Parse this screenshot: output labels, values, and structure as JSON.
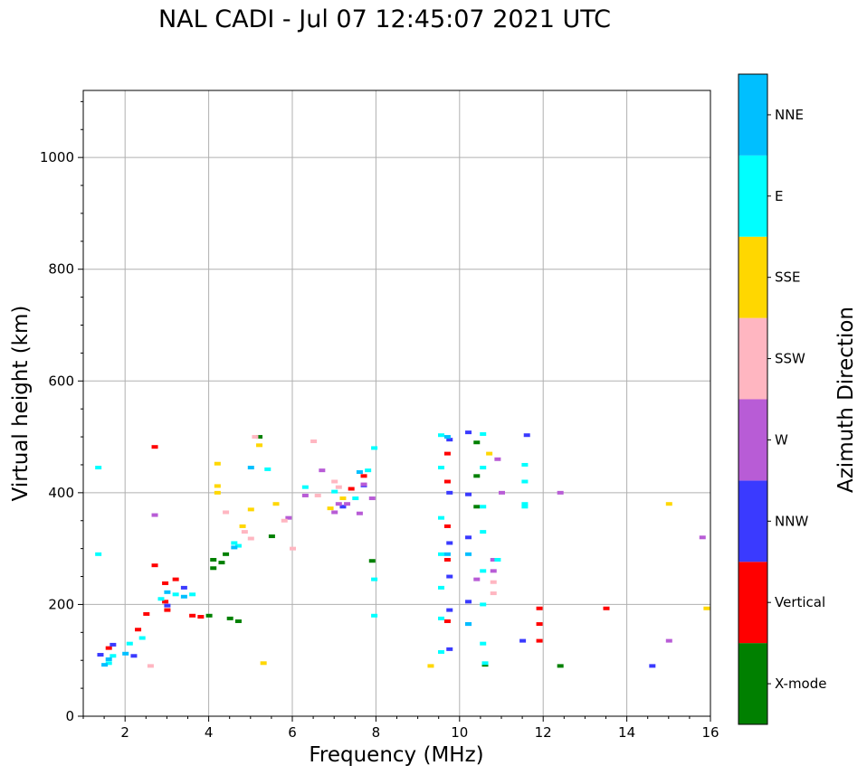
{
  "title": "NAL CADI - Jul 07 12:45:07 2021 UTC",
  "chart_data": {
    "type": "scatter",
    "title": "NAL CADI - Jul 07 12:45:07 2021 UTC",
    "xlabel": "Frequency (MHz)",
    "ylabel": "Virtual height (km)",
    "xlim": [
      1,
      16
    ],
    "ylim": [
      0,
      1120
    ],
    "xticks": [
      "2",
      "4",
      "6",
      "8",
      "10",
      "12",
      "14",
      "16"
    ],
    "yticks": [
      "0",
      "200",
      "400",
      "600",
      "800",
      "1000"
    ],
    "grid": true,
    "colorbar": {
      "label": "Azimuth Direction",
      "categories": [
        {
          "name": "X-mode",
          "color": "#008000"
        },
        {
          "name": "Vertical",
          "color": "#ff0000"
        },
        {
          "name": "NNW",
          "color": "#3a3aff"
        },
        {
          "name": "W",
          "color": "#b85cd6"
        },
        {
          "name": "SSW",
          "color": "#ffb6c1"
        },
        {
          "name": "SSE",
          "color": "#ffd700"
        },
        {
          "name": "E",
          "color": "#00ffff"
        },
        {
          "name": "NNE",
          "color": "#00bfff"
        }
      ]
    },
    "series": [
      {
        "name": "X-mode",
        "points": [
          [
            4.1,
            265
          ],
          [
            4.1,
            280
          ],
          [
            4.5,
            175
          ],
          [
            4.7,
            170
          ],
          [
            5.5,
            322
          ],
          [
            4.4,
            290
          ],
          [
            7.9,
            278
          ],
          [
            10.4,
            490
          ],
          [
            10.4,
            430
          ],
          [
            10.4,
            375
          ],
          [
            10.6,
            92
          ],
          [
            12.4,
            90
          ],
          [
            5.2,
            500
          ],
          [
            4.0,
            180
          ],
          [
            4.3,
            275
          ]
        ]
      },
      {
        "name": "Vertical",
        "points": [
          [
            1.6,
            122
          ],
          [
            2.95,
            238
          ],
          [
            2.95,
            205
          ],
          [
            3.0,
            190
          ],
          [
            3.2,
            245
          ],
          [
            3.6,
            180
          ],
          [
            3.8,
            178
          ],
          [
            2.7,
            270
          ],
          [
            2.7,
            482
          ],
          [
            2.5,
            183
          ],
          [
            2.3,
            155
          ],
          [
            7.4,
            407
          ],
          [
            7.7,
            430
          ],
          [
            11.9,
            193
          ],
          [
            11.9,
            135
          ],
          [
            11.9,
            165
          ],
          [
            13.5,
            193
          ],
          [
            9.7,
            470
          ],
          [
            9.7,
            420
          ],
          [
            9.7,
            340
          ],
          [
            9.7,
            280
          ],
          [
            9.7,
            170
          ]
        ]
      },
      {
        "name": "NNW",
        "points": [
          [
            1.4,
            110
          ],
          [
            1.7,
            128
          ],
          [
            2.2,
            108
          ],
          [
            3.0,
            198
          ],
          [
            3.4,
            230
          ],
          [
            7.7,
            413
          ],
          [
            7.2,
            375
          ],
          [
            9.75,
            495
          ],
          [
            9.75,
            400
          ],
          [
            9.75,
            310
          ],
          [
            9.75,
            250
          ],
          [
            9.75,
            190
          ],
          [
            9.75,
            120
          ],
          [
            10.2,
            320
          ],
          [
            10.2,
            205
          ],
          [
            10.2,
            165
          ],
          [
            11.5,
            135
          ],
          [
            14.6,
            90
          ],
          [
            11.6,
            503
          ],
          [
            10.2,
            508
          ],
          [
            10.2,
            397
          ]
        ]
      },
      {
        "name": "W",
        "points": [
          [
            6.3,
            395
          ],
          [
            6.7,
            440
          ],
          [
            7.0,
            365
          ],
          [
            7.1,
            380
          ],
          [
            7.3,
            380
          ],
          [
            7.6,
            363
          ],
          [
            7.9,
            390
          ],
          [
            7.7,
            415
          ],
          [
            5.9,
            355
          ],
          [
            12.4,
            400
          ],
          [
            15.0,
            135
          ],
          [
            15.8,
            320
          ],
          [
            2.7,
            360
          ],
          [
            10.8,
            280
          ],
          [
            10.8,
            260
          ],
          [
            10.4,
            245
          ],
          [
            10.9,
            460
          ],
          [
            11.0,
            400
          ]
        ]
      },
      {
        "name": "SSW",
        "points": [
          [
            6.5,
            492
          ],
          [
            6.6,
            395
          ],
          [
            7.0,
            420
          ],
          [
            7.1,
            410
          ],
          [
            5.0,
            318
          ],
          [
            4.85,
            330
          ],
          [
            2.6,
            90
          ],
          [
            5.8,
            350
          ],
          [
            6.0,
            300
          ],
          [
            4.4,
            365
          ],
          [
            10.8,
            240
          ],
          [
            10.8,
            220
          ],
          [
            5.1,
            500
          ]
        ]
      },
      {
        "name": "SSE",
        "points": [
          [
            4.2,
            452
          ],
          [
            4.2,
            412
          ],
          [
            4.2,
            400
          ],
          [
            5.2,
            485
          ],
          [
            5.6,
            380
          ],
          [
            4.8,
            340
          ],
          [
            5.0,
            370
          ],
          [
            7.2,
            390
          ],
          [
            6.9,
            372
          ],
          [
            9.3,
            90
          ],
          [
            15.0,
            380
          ],
          [
            15.9,
            193
          ],
          [
            5.3,
            95
          ],
          [
            10.7,
            470
          ]
        ]
      },
      {
        "name": "E",
        "points": [
          [
            1.6,
            95
          ],
          [
            1.7,
            108
          ],
          [
            2.1,
            130
          ],
          [
            2.4,
            140
          ],
          [
            2.85,
            210
          ],
          [
            3.2,
            218
          ],
          [
            3.6,
            218
          ],
          [
            4.6,
            310
          ],
          [
            4.7,
            305
          ],
          [
            5.4,
            442
          ],
          [
            6.3,
            410
          ],
          [
            7.0,
            402
          ],
          [
            7.5,
            390
          ],
          [
            7.8,
            440
          ],
          [
            1.35,
            290
          ],
          [
            1.35,
            445
          ],
          [
            9.55,
            503
          ],
          [
            9.55,
            445
          ],
          [
            9.55,
            355
          ],
          [
            9.55,
            290
          ],
          [
            9.55,
            230
          ],
          [
            9.55,
            175
          ],
          [
            9.55,
            115
          ],
          [
            10.55,
            505
          ],
          [
            10.55,
            445
          ],
          [
            10.55,
            375
          ],
          [
            10.55,
            330
          ],
          [
            10.55,
            260
          ],
          [
            10.55,
            200
          ],
          [
            10.55,
            130
          ],
          [
            10.6,
            95
          ],
          [
            11.55,
            450
          ],
          [
            11.55,
            420
          ],
          [
            11.55,
            380
          ],
          [
            11.55,
            375
          ],
          [
            10.9,
            280
          ],
          [
            7.95,
            245
          ],
          [
            7.95,
            180
          ],
          [
            7.95,
            480
          ]
        ]
      },
      {
        "name": "NNE",
        "points": [
          [
            1.5,
            92
          ],
          [
            1.6,
            102
          ],
          [
            2.0,
            112
          ],
          [
            3.0,
            222
          ],
          [
            3.4,
            214
          ],
          [
            4.6,
            302
          ],
          [
            7.6,
            437
          ],
          [
            5.0,
            445
          ],
          [
            9.7,
            500
          ],
          [
            9.7,
            290
          ],
          [
            10.2,
            290
          ],
          [
            10.2,
            165
          ]
        ]
      }
    ]
  }
}
